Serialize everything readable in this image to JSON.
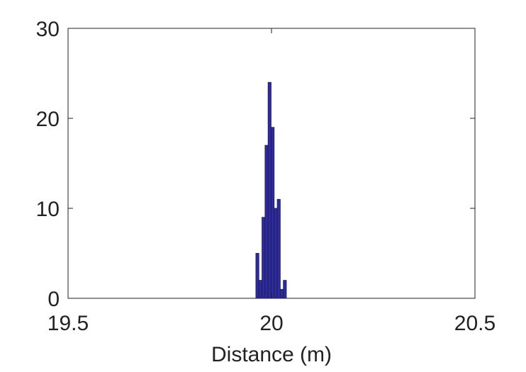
{
  "chart_data": {
    "type": "bar",
    "title": "",
    "xlabel": "Distance (m)",
    "ylabel": "",
    "xlim": [
      19.5,
      20.5
    ],
    "ylim": [
      0,
      30
    ],
    "xticks": [
      "19.5",
      "20",
      "20.5"
    ],
    "xtick_values": [
      19.5,
      20.0,
      20.5
    ],
    "yticks": [
      "0",
      "10",
      "20",
      "30"
    ],
    "ytick_values": [
      0,
      10,
      20,
      30
    ],
    "grid": false,
    "bin_width": 0.0075,
    "bins": [
      {
        "x": 19.9653,
        "value": 5
      },
      {
        "x": 19.9728,
        "value": 2
      },
      {
        "x": 19.9803,
        "value": 9
      },
      {
        "x": 19.9878,
        "value": 17
      },
      {
        "x": 19.9953,
        "value": 24
      },
      {
        "x": 20.0028,
        "value": 19
      },
      {
        "x": 20.0103,
        "value": 10
      },
      {
        "x": 20.0178,
        "value": 11
      },
      {
        "x": 20.0253,
        "value": 1
      },
      {
        "x": 20.0328,
        "value": 2
      }
    ],
    "colors": {
      "bar_fill": "#2e2c9b",
      "bar_edge": "#1b1a55",
      "axis": "#222222"
    }
  }
}
